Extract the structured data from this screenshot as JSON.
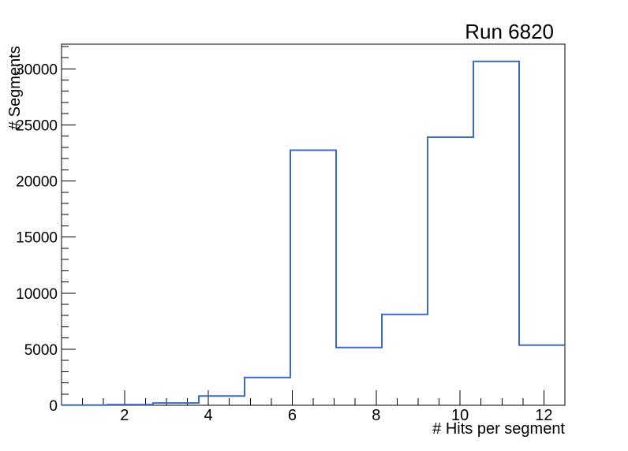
{
  "chart_data": {
    "type": "bar",
    "subtype": "step-histogram",
    "title": "Run 6820",
    "xlabel": "# Hits per segment",
    "ylabel": "# Segments",
    "xlim": [
      0.5,
      12.5
    ],
    "ylim": [
      0,
      32200
    ],
    "grid": false,
    "legend": "none",
    "bin_edges": [
      0.5,
      1.5909,
      2.6818,
      3.7727,
      4.8636,
      5.9545,
      7.0455,
      8.1364,
      9.2273,
      10.3182,
      11.4091,
      12.5
    ],
    "values": [
      20,
      60,
      200,
      830,
      2480,
      22740,
      5150,
      8100,
      23900,
      30660,
      5360
    ],
    "x_axis": {
      "major_ticks": [
        2,
        4,
        6,
        8,
        10,
        12
      ],
      "major_labels": [
        "2",
        "4",
        "6",
        "8",
        "10",
        "12"
      ],
      "minor_step": 0.5
    },
    "y_axis": {
      "major_step": 5000,
      "minor_step": 1000,
      "major_labels": [
        "0",
        "5000",
        "10000",
        "15000",
        "20000",
        "25000",
        "30000"
      ]
    },
    "colors": {
      "line": "#3c69c8",
      "axis": "#000000",
      "text": "#000000",
      "background": "#ffffff"
    }
  }
}
